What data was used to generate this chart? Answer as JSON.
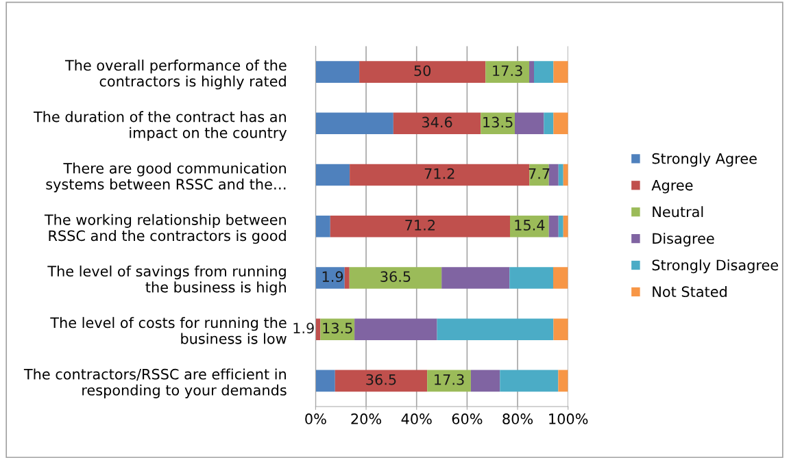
{
  "chart_data": {
    "type": "bar",
    "orientation": "horizontal",
    "stacked": true,
    "categories": [
      "The overall performance of the\ncontractors is highly rated",
      "The duration of the contract has an\nimpact on the country",
      "There are good communication\nsystems between RSSC and the…",
      "The working relationship between\nRSSC and the contractors is good",
      "The level of savings from running\nthe business is high",
      "The level of costs for running the\nbusiness is low",
      "The contractors/RSSC are efficient in\nresponding to your demands"
    ],
    "series": [
      {
        "name": "Strongly Agree",
        "color": "#4f81bd",
        "values": [
          17.3,
          30.8,
          13.5,
          5.8,
          11.5,
          0,
          7.7
        ]
      },
      {
        "name": "Agree",
        "color": "#c0504d",
        "values": [
          50,
          34.6,
          71.2,
          71.2,
          1.9,
          1.9,
          36.5
        ],
        "value_labels": [
          "50",
          "34.6",
          "71.2",
          "71.2",
          "1.9",
          "1.9",
          "36.5"
        ]
      },
      {
        "name": "Neutral",
        "color": "#9bbb59",
        "values": [
          17.3,
          13.5,
          7.7,
          15.4,
          36.5,
          13.5,
          17.3
        ],
        "value_labels": [
          "17.3",
          "13.5",
          "7.7",
          "15.4",
          "36.5",
          "13.5",
          "17.3"
        ]
      },
      {
        "name": "Disagree",
        "color": "#8064a2",
        "values": [
          1.9,
          11.5,
          3.8,
          3.8,
          26.9,
          32.7,
          11.5
        ]
      },
      {
        "name": "Strongly Disagree",
        "color": "#4bacc6",
        "values": [
          7.7,
          3.8,
          1.9,
          1.9,
          17.3,
          46.1,
          23.1
        ]
      },
      {
        "name": "Not Stated",
        "color": "#f79646",
        "values": [
          5.8,
          5.8,
          1.9,
          1.9,
          5.8,
          5.8,
          3.8
        ]
      }
    ],
    "xlim": [
      0,
      100
    ],
    "xticks": [
      {
        "value": 0,
        "label": "0%"
      },
      {
        "value": 20,
        "label": "20%"
      },
      {
        "value": 40,
        "label": "40%"
      },
      {
        "value": 60,
        "label": "60%"
      },
      {
        "value": 80,
        "label": "80%"
      },
      {
        "value": 100,
        "label": "100%"
      }
    ],
    "grid": "x",
    "legend": "right"
  }
}
